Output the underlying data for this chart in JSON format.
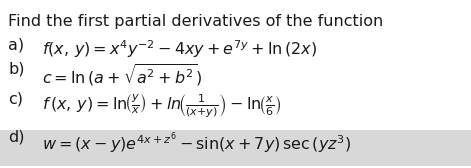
{
  "title": "Find the first partial derivatives of the function",
  "lines": [
    {
      "label": "a)",
      "formula": "$f(x,\\,y) = x^4y^{-2} - 4xy + e^{7y} + \\mathrm{ln}\\,(2x)$"
    },
    {
      "label": "b)",
      "formula": "$c = \\mathrm{ln}\\,(a + \\sqrt{a^2 + b^2})$"
    },
    {
      "label": "c)",
      "formula": "$f\\,(x,\\,y) = \\mathrm{ln}\\!\\left(\\frac{y}{x}\\right) + \\mathit{ln}\\!\\left(\\frac{1}{(x{+}y)}\\right) - \\mathrm{ln}\\!\\left(\\frac{x}{6}\\right)$"
    },
    {
      "label": "d)",
      "formula": "$w = (x - y)e^{4x+z^6} - \\sin(x + 7y)\\,\\mathrm{sec}\\,(yz^3)$"
    }
  ],
  "background_color": "#ffffff",
  "text_color": "#1a1a1a",
  "title_fontsize": 11.5,
  "line_fontsize": 11.5,
  "highlight_color": "#d8d8d8",
  "fig_width": 4.71,
  "fig_height": 1.68,
  "dpi": 100
}
